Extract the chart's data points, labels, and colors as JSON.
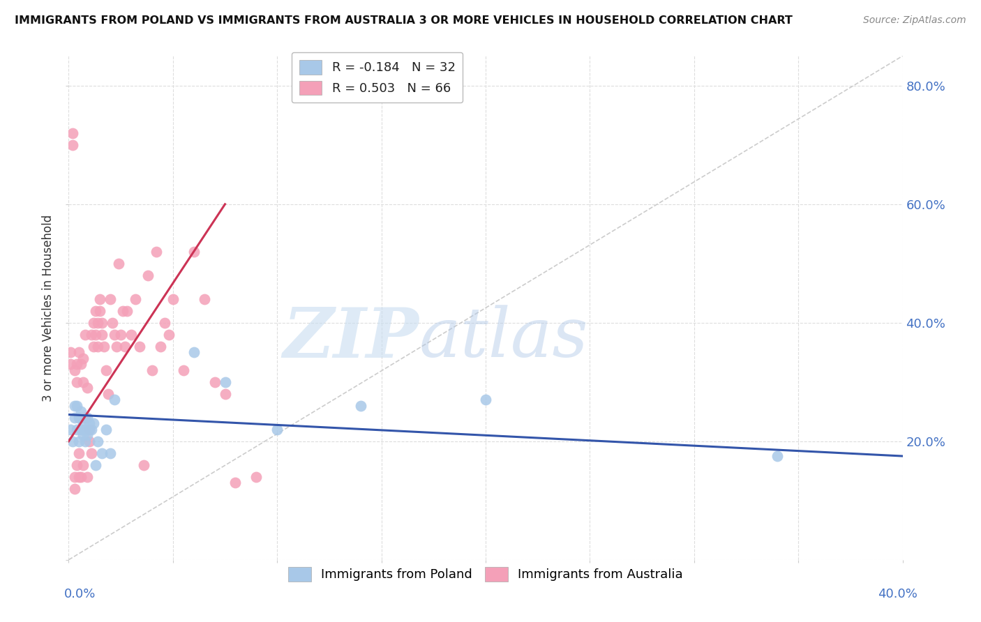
{
  "title": "IMMIGRANTS FROM POLAND VS IMMIGRANTS FROM AUSTRALIA 3 OR MORE VEHICLES IN HOUSEHOLD CORRELATION CHART",
  "source": "Source: ZipAtlas.com",
  "ylabel": "3 or more Vehicles in Household",
  "ylabel_right_ticks": [
    "20.0%",
    "40.0%",
    "60.0%",
    "80.0%"
  ],
  "ylabel_right_values": [
    0.2,
    0.4,
    0.6,
    0.8
  ],
  "xlim": [
    0.0,
    0.4
  ],
  "ylim": [
    0.0,
    0.85
  ],
  "legend1_R": "-0.184",
  "legend1_N": "32",
  "legend2_R": "0.503",
  "legend2_N": "66",
  "color_poland": "#a8c8e8",
  "color_australia": "#f4a0b8",
  "color_poland_line": "#3355aa",
  "color_australia_line": "#cc3355",
  "watermark_zip": "ZIP",
  "watermark_atlas": "atlas",
  "poland_x": [
    0.001,
    0.002,
    0.003,
    0.003,
    0.004,
    0.004,
    0.005,
    0.005,
    0.006,
    0.006,
    0.007,
    0.007,
    0.008,
    0.008,
    0.009,
    0.009,
    0.01,
    0.01,
    0.011,
    0.012,
    0.013,
    0.014,
    0.016,
    0.018,
    0.02,
    0.022,
    0.06,
    0.075,
    0.1,
    0.14,
    0.2,
    0.34
  ],
  "poland_y": [
    0.22,
    0.2,
    0.24,
    0.26,
    0.22,
    0.26,
    0.2,
    0.24,
    0.22,
    0.25,
    0.21,
    0.23,
    0.2,
    0.22,
    0.24,
    0.21,
    0.22,
    0.23,
    0.22,
    0.23,
    0.16,
    0.2,
    0.18,
    0.22,
    0.18,
    0.27,
    0.35,
    0.3,
    0.22,
    0.26,
    0.27,
    0.175
  ],
  "australia_x": [
    0.001,
    0.001,
    0.002,
    0.002,
    0.003,
    0.003,
    0.003,
    0.004,
    0.004,
    0.004,
    0.005,
    0.005,
    0.005,
    0.006,
    0.006,
    0.007,
    0.007,
    0.007,
    0.008,
    0.008,
    0.009,
    0.009,
    0.01,
    0.01,
    0.011,
    0.011,
    0.012,
    0.012,
    0.013,
    0.013,
    0.014,
    0.014,
    0.015,
    0.015,
    0.016,
    0.016,
    0.017,
    0.018,
    0.019,
    0.02,
    0.021,
    0.022,
    0.023,
    0.024,
    0.025,
    0.026,
    0.027,
    0.028,
    0.03,
    0.032,
    0.034,
    0.036,
    0.038,
    0.04,
    0.042,
    0.044,
    0.046,
    0.048,
    0.05,
    0.055,
    0.06,
    0.065,
    0.07,
    0.075,
    0.08,
    0.09
  ],
  "australia_y": [
    0.33,
    0.35,
    0.7,
    0.72,
    0.32,
    0.14,
    0.12,
    0.16,
    0.3,
    0.33,
    0.14,
    0.18,
    0.35,
    0.14,
    0.33,
    0.16,
    0.3,
    0.34,
    0.24,
    0.38,
    0.14,
    0.29,
    0.2,
    0.22,
    0.18,
    0.38,
    0.36,
    0.4,
    0.38,
    0.42,
    0.36,
    0.4,
    0.42,
    0.44,
    0.38,
    0.4,
    0.36,
    0.32,
    0.28,
    0.44,
    0.4,
    0.38,
    0.36,
    0.5,
    0.38,
    0.42,
    0.36,
    0.42,
    0.38,
    0.44,
    0.36,
    0.16,
    0.48,
    0.32,
    0.52,
    0.36,
    0.4,
    0.38,
    0.44,
    0.32,
    0.52,
    0.44,
    0.3,
    0.28,
    0.13,
    0.14
  ],
  "australia_line_x": [
    0.0,
    0.075
  ],
  "australia_line_y": [
    0.2,
    0.6
  ],
  "poland_line_x": [
    0.0,
    0.4
  ],
  "poland_line_y": [
    0.245,
    0.175
  ],
  "diag_line_x": [
    0.0,
    0.4
  ],
  "diag_line_y": [
    0.0,
    0.85
  ]
}
